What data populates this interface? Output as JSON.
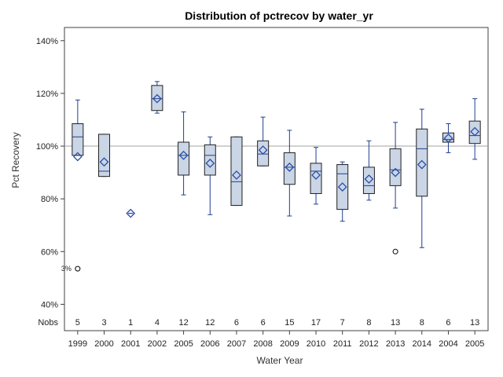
{
  "chart_data": {
    "type": "box",
    "title": "Distribution of pctrecov by water_yr",
    "xlabel": "Water Year",
    "ylabel": "Pct Recovery",
    "ylim": [
      30,
      145
    ],
    "yticks": [
      40,
      60,
      80,
      100,
      120,
      140
    ],
    "ytick_suffix": "%",
    "reference_line": 100,
    "nobs_label": "Nobs",
    "outlier_label": "3%",
    "categories": [
      "1999",
      "2000",
      "2001",
      "2002",
      "2005",
      "2006",
      "2007",
      "2008",
      "2009",
      "2010",
      "2011",
      "2012",
      "2013",
      "2014",
      "2004",
      "2005"
    ],
    "boxes": [
      {
        "nobs": 5,
        "q1": 96.5,
        "median": 103.5,
        "q3": 108.5,
        "mean": 96,
        "wlow": 96.5,
        "whigh": 117.5,
        "outliers": [
          53.5
        ]
      },
      {
        "nobs": 3,
        "q1": 88.5,
        "median": 90.5,
        "q3": 104.5,
        "mean": 94,
        "wlow": 88.5,
        "whigh": 104.5,
        "outliers": []
      },
      {
        "nobs": 1,
        "q1": 74.5,
        "median": 74.5,
        "q3": 74.5,
        "mean": 74.5,
        "wlow": 74.5,
        "whigh": 74.5,
        "outliers": []
      },
      {
        "nobs": 4,
        "q1": 113.5,
        "median": 118,
        "q3": 123,
        "mean": 118,
        "wlow": 112.5,
        "whigh": 124.5,
        "outliers": []
      },
      {
        "nobs": 12,
        "q1": 89,
        "median": 96.5,
        "q3": 101.5,
        "mean": 96.5,
        "wlow": 81.5,
        "whigh": 113,
        "outliers": []
      },
      {
        "nobs": 12,
        "q1": 89,
        "median": 96.5,
        "q3": 100.5,
        "mean": 93.5,
        "wlow": 74,
        "whigh": 103.5,
        "outliers": []
      },
      {
        "nobs": 6,
        "q1": 77.5,
        "median": 86.5,
        "q3": 103.5,
        "mean": 89,
        "wlow": 77.5,
        "whigh": 103.5,
        "outliers": []
      },
      {
        "nobs": 6,
        "q1": 92.5,
        "median": 97,
        "q3": 102,
        "mean": 98.5,
        "wlow": 92.5,
        "whigh": 111,
        "outliers": []
      },
      {
        "nobs": 15,
        "q1": 85.5,
        "median": 92,
        "q3": 97.5,
        "mean": 92,
        "wlow": 73.5,
        "whigh": 106,
        "outliers": []
      },
      {
        "nobs": 17,
        "q1": 82,
        "median": 90.5,
        "q3": 93.5,
        "mean": 89,
        "wlow": 78,
        "whigh": 99.5,
        "outliers": []
      },
      {
        "nobs": 7,
        "q1": 76,
        "median": 89.5,
        "q3": 93,
        "mean": 84.5,
        "wlow": 71.5,
        "whigh": 94,
        "outliers": []
      },
      {
        "nobs": 8,
        "q1": 82,
        "median": 85,
        "q3": 92,
        "mean": 87.5,
        "wlow": 79.5,
        "whigh": 102,
        "outliers": []
      },
      {
        "nobs": 13,
        "q1": 85,
        "median": 91,
        "q3": 99,
        "mean": 90,
        "wlow": 76.5,
        "whigh": 109,
        "outliers": [
          60
        ]
      },
      {
        "nobs": 8,
        "q1": 81,
        "median": 99,
        "q3": 106.5,
        "mean": 93,
        "wlow": 61.5,
        "whigh": 114,
        "outliers": []
      },
      {
        "nobs": 6,
        "q1": 101.5,
        "median": 102.5,
        "q3": 105,
        "mean": 103,
        "wlow": 97.5,
        "whigh": 108.5,
        "outliers": []
      },
      {
        "nobs": 13,
        "q1": 101,
        "median": 104,
        "q3": 109.5,
        "mean": 105.5,
        "wlow": 95,
        "whigh": 118,
        "outliers": []
      }
    ],
    "colors": {
      "box_fill": "#cad5e5",
      "box_stroke": "#202020",
      "whisker": "#1f3f8f",
      "median": "#1f3f8f",
      "mean_marker": "#2a4ea8",
      "reference": "#a0a0a0",
      "frame": "#404040",
      "outlier": "#000000"
    },
    "grid": false
  }
}
